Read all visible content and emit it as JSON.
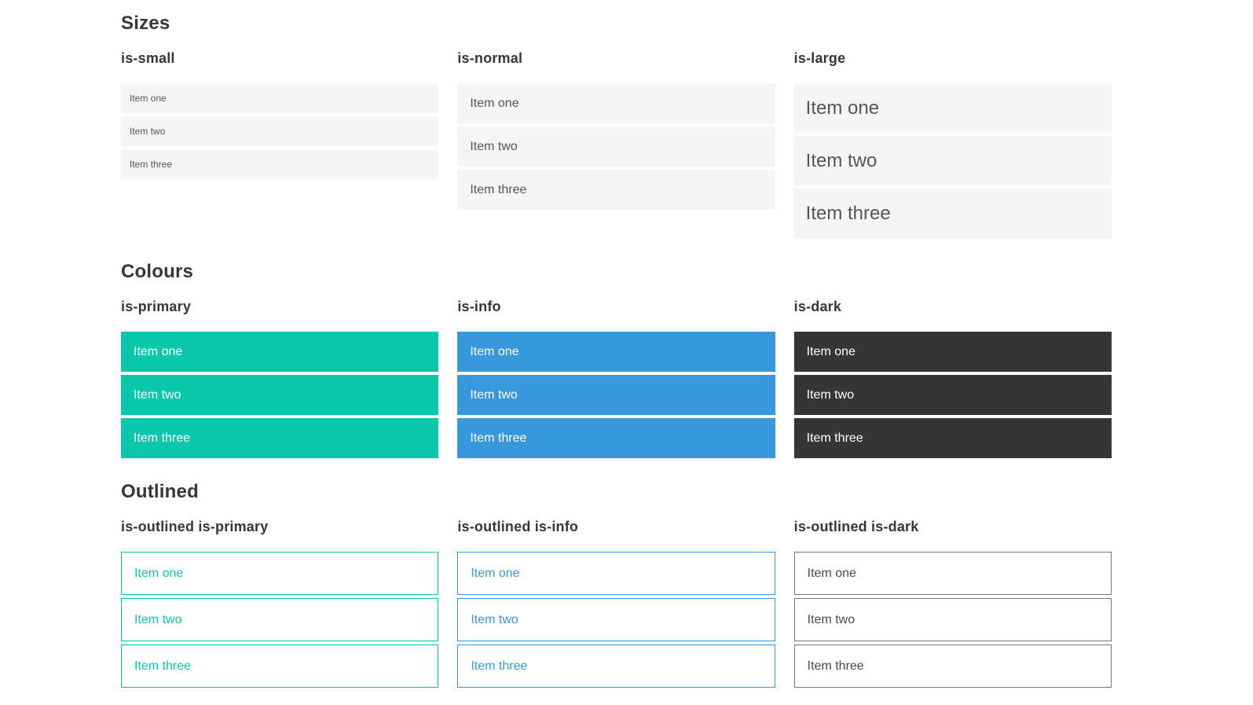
{
  "colors": {
    "primary": "#0bc8ac",
    "info": "#3799dc",
    "dark": "#363636",
    "light_bg": "#f5f5f5",
    "row_text": "#555555",
    "heading_text": "#363636",
    "outlined_dark_border": "#757575",
    "outlined_dark_text": "#4a4a4a"
  },
  "items": [
    "Item one",
    "Item two",
    "Item three"
  ],
  "sections": [
    {
      "title": "Sizes",
      "groups": [
        {
          "label": "is-small"
        },
        {
          "label": "is-normal"
        },
        {
          "label": "is-large"
        }
      ]
    },
    {
      "title": "Colours",
      "groups": [
        {
          "label": "is-primary"
        },
        {
          "label": "is-info"
        },
        {
          "label": "is-dark"
        }
      ]
    },
    {
      "title": "Outlined",
      "groups": [
        {
          "label": "is-outlined is-primary"
        },
        {
          "label": "is-outlined is-info"
        },
        {
          "label": "is-outlined is-dark"
        }
      ]
    }
  ]
}
